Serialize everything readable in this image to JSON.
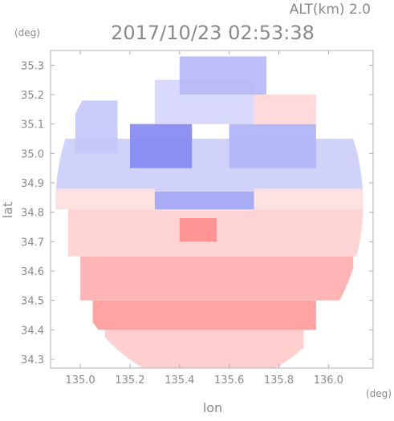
{
  "chart_data": {
    "type": "heatmap",
    "title": "2017/10/23 02:53:38",
    "subtitle": "ALT(km) 2.0",
    "xlabel": "lon",
    "ylabel": "lat",
    "x_unit": "(deg)",
    "y_unit": "(deg)",
    "xlim": [
      134.88,
      136.18
    ],
    "ylim": [
      34.27,
      35.35
    ],
    "x_ticks": [
      135.0,
      135.2,
      135.4,
      135.6,
      135.8,
      136.0
    ],
    "x_tick_labels": [
      "135.0",
      "135.2",
      "135.4",
      "135.6",
      "135.8",
      "136.0"
    ],
    "y_ticks": [
      34.3,
      34.4,
      34.5,
      34.6,
      34.7,
      34.8,
      34.9,
      35.0,
      35.1,
      35.2,
      35.3
    ],
    "y_tick_labels": [
      "34.3",
      "34.4",
      "34.5",
      "34.6",
      "34.7",
      "34.8",
      "34.9",
      "35.0",
      "35.1",
      "35.2",
      "35.3"
    ],
    "grid": false,
    "colors": {
      "positive": "#ff7a7a",
      "negative": "#6f74ee",
      "neutral": "#ffffff",
      "axis": "#b0b0b0",
      "text": "#8a8a8a"
    },
    "radar_center": {
      "lon": 135.52,
      "lat": 34.83
    },
    "radar_range_deg": 0.62,
    "sectors": [
      {
        "lon_min": 134.88,
        "lon_max": 136.18,
        "lat_min": 34.87,
        "lat_max": 35.05,
        "value": -0.35
      },
      {
        "lon_min": 135.2,
        "lon_max": 135.45,
        "lat_min": 34.95,
        "lat_max": 35.1,
        "value": -0.85
      },
      {
        "lon_min": 135.6,
        "lon_max": 135.95,
        "lat_min": 34.95,
        "lat_max": 35.1,
        "value": -0.55
      },
      {
        "lon_min": 135.3,
        "lon_max": 135.7,
        "lat_min": 35.1,
        "lat_max": 35.25,
        "value": -0.3
      },
      {
        "lon_min": 135.7,
        "lon_max": 135.95,
        "lat_min": 35.1,
        "lat_max": 35.2,
        "value": 0.3
      },
      {
        "lon_min": 135.4,
        "lon_max": 135.75,
        "lat_min": 35.2,
        "lat_max": 35.33,
        "value": -0.5
      },
      {
        "lon_min": 134.88,
        "lon_max": 135.3,
        "lat_min": 34.81,
        "lat_max": 34.88,
        "value": 0.25
      },
      {
        "lon_min": 135.3,
        "lon_max": 135.7,
        "lat_min": 34.81,
        "lat_max": 34.87,
        "value": -0.65
      },
      {
        "lon_min": 135.7,
        "lon_max": 136.18,
        "lat_min": 34.81,
        "lat_max": 34.88,
        "value": 0.25
      },
      {
        "lon_min": 134.95,
        "lon_max": 136.15,
        "lat_min": 34.65,
        "lat_max": 34.81,
        "value": 0.35
      },
      {
        "lon_min": 135.4,
        "lon_max": 135.55,
        "lat_min": 34.7,
        "lat_max": 34.78,
        "value": 0.85
      },
      {
        "lon_min": 135.0,
        "lon_max": 136.1,
        "lat_min": 34.5,
        "lat_max": 34.65,
        "value": 0.6
      },
      {
        "lon_min": 135.05,
        "lon_max": 135.95,
        "lat_min": 34.4,
        "lat_max": 34.5,
        "value": 0.75
      },
      {
        "lon_min": 135.1,
        "lon_max": 135.9,
        "lat_min": 34.27,
        "lat_max": 34.4,
        "value": 0.4
      },
      {
        "lon_min": 134.98,
        "lon_max": 135.15,
        "lat_min": 35.0,
        "lat_max": 35.18,
        "value": -0.4
      }
    ]
  }
}
